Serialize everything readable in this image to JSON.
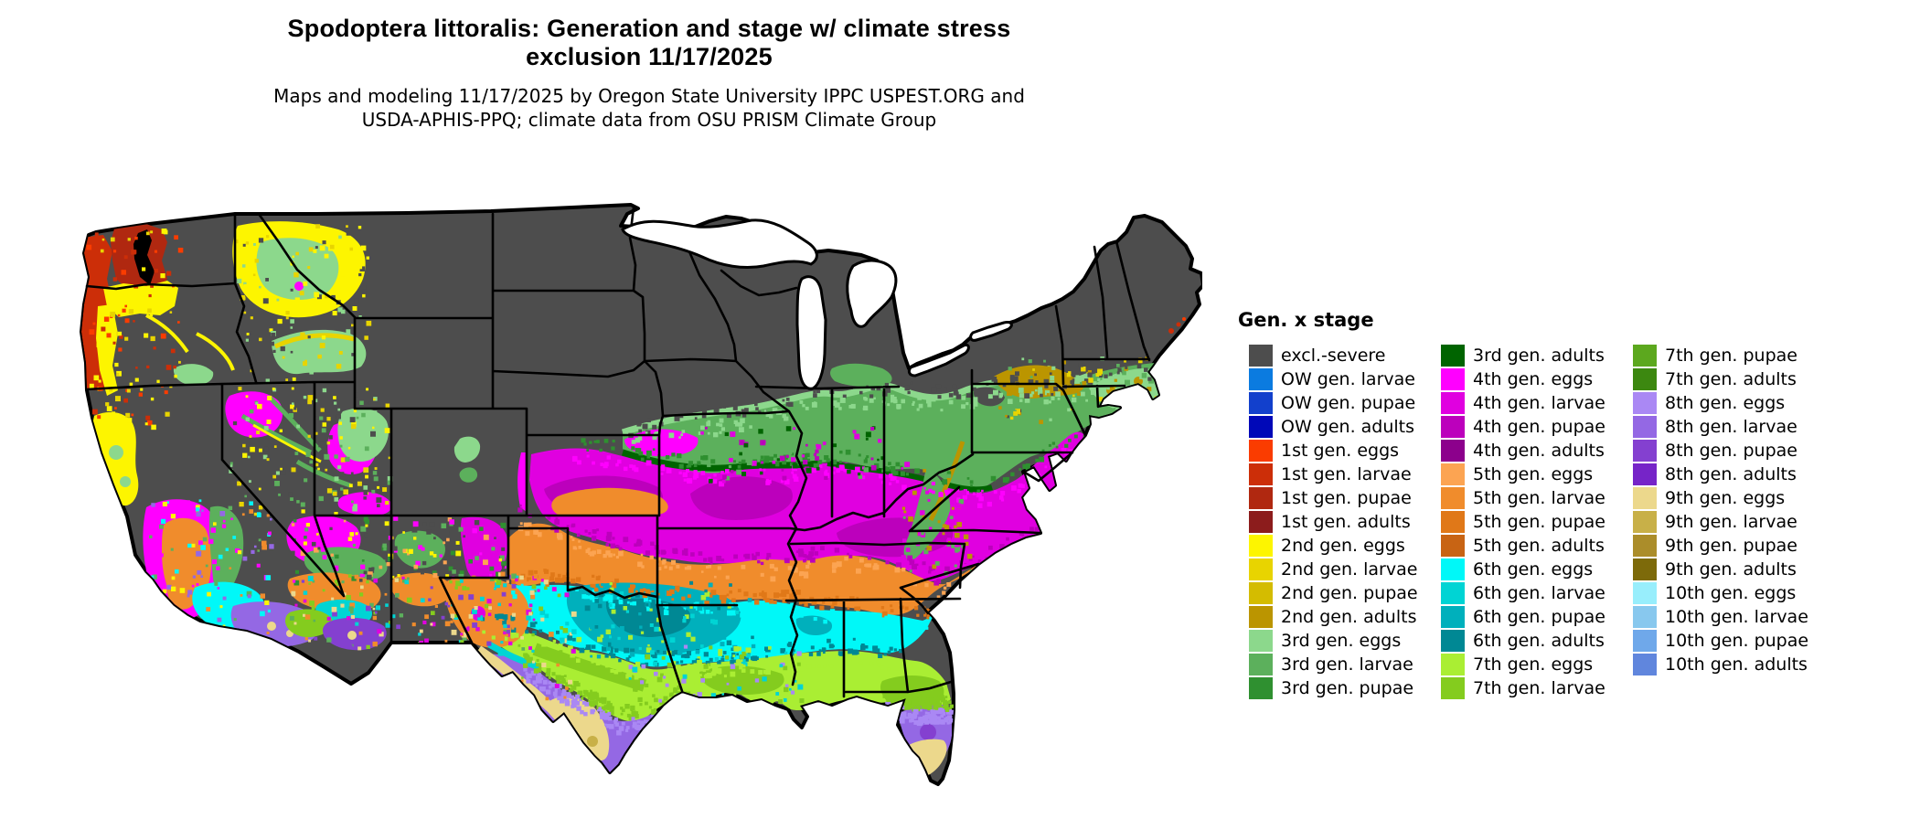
{
  "title": {
    "line1": "Spodoptera littoralis: Generation and stage w/ climate stress",
    "line2": "exclusion 11/17/2025"
  },
  "subtitle": {
    "line1": "Maps and modeling 11/17/2025 by Oregon State University IPPC USPEST.ORG and",
    "line2": "USDA-APHIS-PPQ; climate data from OSU PRISM Climate Group"
  },
  "legend": {
    "title": "Gen. x stage",
    "columns": [
      [
        {
          "id": "excl",
          "label": "excl.-severe",
          "color": "#4d4d4d"
        },
        {
          "id": "ow-l",
          "label": "OW gen. larvae",
          "color": "#0b7be0"
        },
        {
          "id": "ow-p",
          "label": "OW gen. pupae",
          "color": "#1240cc"
        },
        {
          "id": "ow-a",
          "label": "OW gen. adults",
          "color": "#0008b8"
        },
        {
          "id": "1e",
          "label": "1st gen. eggs",
          "color": "#fa3c00"
        },
        {
          "id": "1l",
          "label": "1st gen. larvae",
          "color": "#cc2e08"
        },
        {
          "id": "1p",
          "label": "1st gen. pupae",
          "color": "#b02810"
        },
        {
          "id": "1a",
          "label": "1st gen. adults",
          "color": "#8c1c1c"
        },
        {
          "id": "2e",
          "label": "2nd gen. eggs",
          "color": "#fdf500"
        },
        {
          "id": "2l",
          "label": "2nd gen. larvae",
          "color": "#e8d400"
        },
        {
          "id": "2p",
          "label": "2nd gen. pupae",
          "color": "#d4bc00"
        },
        {
          "id": "2a",
          "label": "2nd gen. adults",
          "color": "#bb9500"
        },
        {
          "id": "3e",
          "label": "3rd gen. eggs",
          "color": "#8cd88c"
        },
        {
          "id": "3l",
          "label": "3rd gen. larvae",
          "color": "#5cb05c"
        },
        {
          "id": "3p",
          "label": "3rd gen. pupae",
          "color": "#2f9030"
        }
      ],
      [
        {
          "id": "3a",
          "label": "3rd gen. adults",
          "color": "#006400"
        },
        {
          "id": "4e",
          "label": "4th gen. eggs",
          "color": "#ff00ff"
        },
        {
          "id": "4l",
          "label": "4th gen. larvae",
          "color": "#e000e0"
        },
        {
          "id": "4p",
          "label": "4th gen. pupae",
          "color": "#bc00bc"
        },
        {
          "id": "4a",
          "label": "4th gen. adults",
          "color": "#8c008c"
        },
        {
          "id": "5e",
          "label": "5th gen. eggs",
          "color": "#fca452"
        },
        {
          "id": "5l",
          "label": "5th gen. larvae",
          "color": "#f08c2c"
        },
        {
          "id": "5p",
          "label": "5th gen. pupae",
          "color": "#e07818"
        },
        {
          "id": "5a",
          "label": "5th gen. adults",
          "color": "#c86414"
        },
        {
          "id": "6e",
          "label": "6th gen. eggs",
          "color": "#00f8f8"
        },
        {
          "id": "6l",
          "label": "6th gen. larvae",
          "color": "#00d4d4"
        },
        {
          "id": "6p",
          "label": "6th gen. pupae",
          "color": "#00b0bc"
        },
        {
          "id": "6a",
          "label": "6th gen. adults",
          "color": "#008894"
        },
        {
          "id": "7e",
          "label": "7th gen. eggs",
          "color": "#aaee33"
        },
        {
          "id": "7l",
          "label": "7th gen. larvae",
          "color": "#84cc1e"
        }
      ],
      [
        {
          "id": "7p",
          "label": "7th gen. pupae",
          "color": "#5ca81e"
        },
        {
          "id": "7a",
          "label": "7th gen. adults",
          "color": "#3c8810"
        },
        {
          "id": "8e",
          "label": "8th gen. eggs",
          "color": "#aa88f4"
        },
        {
          "id": "8l",
          "label": "8th gen. larvae",
          "color": "#9468e4"
        },
        {
          "id": "8p",
          "label": "8th gen. pupae",
          "color": "#8440d0"
        },
        {
          "id": "8a",
          "label": "8th gen. adults",
          "color": "#7624c8"
        },
        {
          "id": "9e",
          "label": "9th gen. eggs",
          "color": "#ecd88c"
        },
        {
          "id": "9l",
          "label": "9th gen. larvae",
          "color": "#c8b048"
        },
        {
          "id": "9p",
          "label": "9th gen. pupae",
          "color": "#ab8d2a"
        },
        {
          "id": "9a",
          "label": "9th gen. adults",
          "color": "#7d6a0a"
        },
        {
          "id": "10e",
          "label": "10th gen. eggs",
          "color": "#98eefc"
        },
        {
          "id": "10l",
          "label": "10th gen. larvae",
          "color": "#88c8ee"
        },
        {
          "id": "10p",
          "label": "10th gen. pupae",
          "color": "#6fa8ea"
        },
        {
          "id": "10a",
          "label": "10th gen. adults",
          "color": "#6086dd"
        }
      ]
    ]
  },
  "map": {
    "background": "#ffffff",
    "excluded_land": "#4d4d4d",
    "state_border": "#000000",
    "water": "#ffffff",
    "puget_sound": "#000000"
  }
}
